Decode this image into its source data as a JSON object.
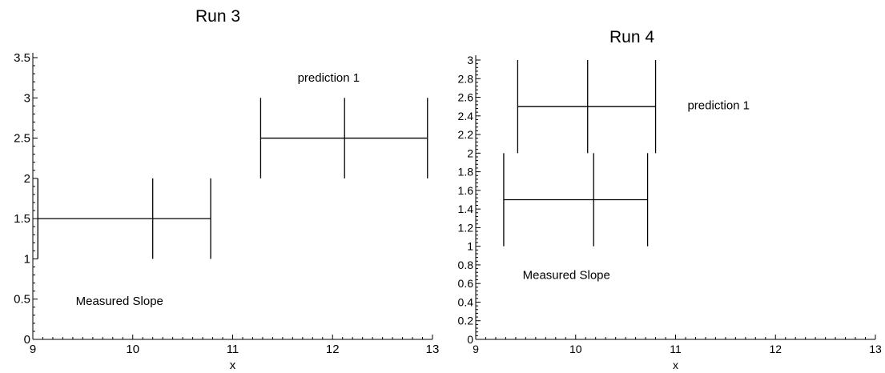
{
  "chart_data": [
    {
      "type": "line",
      "title": "Run 3",
      "xlabel": "x",
      "ylabel": "",
      "xlim": [
        9,
        13
      ],
      "ylim": [
        0,
        3.5
      ],
      "x_ticks": [
        9,
        10,
        11,
        12,
        13
      ],
      "x_tick_labels": [
        "9",
        "10",
        "11",
        "12",
        "13"
      ],
      "y_ticks": [
        0,
        0.5,
        1,
        1.5,
        2,
        2.5,
        3,
        3.5
      ],
      "y_tick_labels": [
        "0",
        "0.5",
        "1",
        "1.5",
        "2",
        "2.5",
        "3",
        "3.5"
      ],
      "grid": false,
      "series": [
        {
          "name": "Measured Slope",
          "x": [
            9.05,
            10.2,
            10.78
          ],
          "y": [
            1.5,
            1.5,
            1.5
          ],
          "low": 1,
          "high": 2
        },
        {
          "name": "prediction 1",
          "x": [
            11.28,
            12.12,
            12.95
          ],
          "y": [
            2.5,
            2.5,
            2.5
          ],
          "low": 2,
          "high": 3
        }
      ],
      "annotations": [
        {
          "text": "prediction 1",
          "x": 11.65,
          "y": 3.2
        },
        {
          "text": "Measured Slope",
          "x": 9.43,
          "y": 0.43
        }
      ]
    },
    {
      "type": "line",
      "title": "Run 4",
      "xlabel": "x",
      "ylabel": "",
      "xlim": [
        9,
        13
      ],
      "ylim": [
        0,
        3
      ],
      "x_ticks": [
        9,
        10,
        11,
        12,
        13
      ],
      "x_tick_labels": [
        "9",
        "10",
        "11",
        "12",
        "13"
      ],
      "y_ticks": [
        0,
        0.2,
        0.4,
        0.6,
        0.8,
        1,
        1.2,
        1.4,
        1.6,
        1.8,
        2,
        2.2,
        2.4,
        2.6,
        2.8,
        3
      ],
      "y_tick_labels": [
        "0",
        "0.2",
        "0.4",
        "0.6",
        "0.8",
        "1",
        "1.2",
        "1.4",
        "1.6",
        "1.8",
        "2",
        "2.2",
        "2.4",
        "2.6",
        "2.8",
        "3"
      ],
      "grid": false,
      "series": [
        {
          "name": "prediction 1",
          "x": [
            9.42,
            10.12,
            10.8
          ],
          "y": [
            2.5,
            2.5,
            2.5
          ],
          "low": 2,
          "high": 3
        },
        {
          "name": "Measured Slope",
          "x": [
            9.28,
            10.18,
            10.72
          ],
          "y": [
            1.5,
            1.5,
            1.5
          ],
          "low": 1,
          "high": 2
        }
      ],
      "annotations": [
        {
          "text": "prediction 1",
          "x": 11.12,
          "y": 2.47
        },
        {
          "text": "Measured Slope",
          "x": 9.47,
          "y": 0.65
        }
      ]
    }
  ]
}
